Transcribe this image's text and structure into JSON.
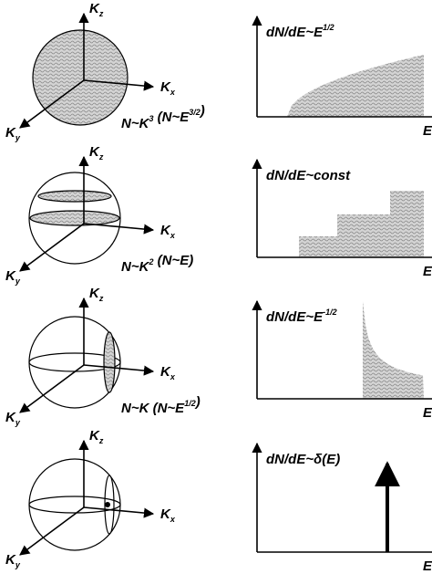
{
  "rows": [
    {
      "kz": {
        "base": "K",
        "sub": "z"
      },
      "kx": {
        "base": "K",
        "sub": "x"
      },
      "ky": {
        "base": "K",
        "sub": "y"
      },
      "relation": [
        {
          "text": "N~K",
          "sup": "3"
        },
        {
          "text": " (N~E",
          "sup": "3/2"
        },
        {
          "text": ")"
        }
      ],
      "dos": [
        {
          "text": "dN/dE~E",
          "sup": "1/2"
        }
      ],
      "axis": "E"
    },
    {
      "kz": {
        "base": "K",
        "sub": "z"
      },
      "kx": {
        "base": "K",
        "sub": "x"
      },
      "ky": {
        "base": "K",
        "sub": "y"
      },
      "relation": [
        {
          "text": "N~K",
          "sup": "2"
        },
        {
          "text": " (N~E)"
        }
      ],
      "dos": [
        {
          "text": "dN/dE~const"
        }
      ],
      "axis": "E"
    },
    {
      "kz": {
        "base": "K",
        "sub": "z"
      },
      "kx": {
        "base": "K",
        "sub": "x"
      },
      "ky": {
        "base": "K",
        "sub": "y"
      },
      "relation": [
        {
          "text": "N~K (N~E",
          "sup": "1/2"
        },
        {
          "text": ")"
        }
      ],
      "dos": [
        {
          "text": "dN/dE~E",
          "sup": "-1/2"
        }
      ],
      "axis": "E"
    },
    {
      "kz": {
        "base": "K",
        "sub": "z"
      },
      "kx": {
        "base": "K",
        "sub": "x"
      },
      "ky": {
        "base": "K",
        "sub": "y"
      },
      "relation": [],
      "dos": [
        {
          "text": "dN/dE~δ(E)"
        }
      ],
      "axis": "E"
    }
  ]
}
